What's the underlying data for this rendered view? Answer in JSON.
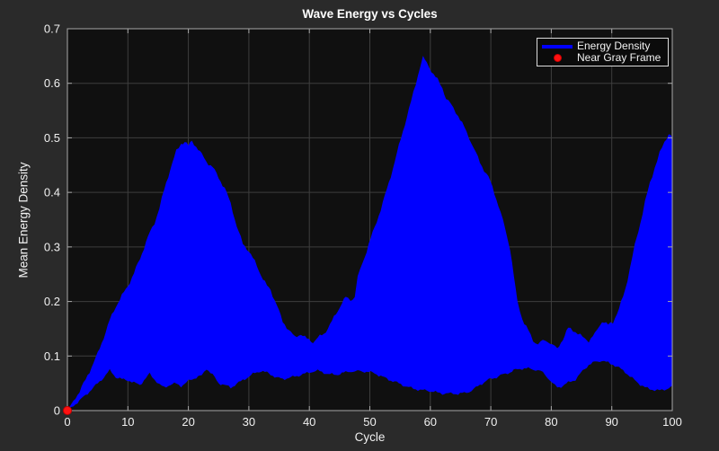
{
  "window": {
    "background": "#2a2a2a"
  },
  "chart_data": {
    "type": "area",
    "title": "Wave Energy vs Cycles",
    "xlabel": "Cycle",
    "ylabel": "Mean Energy Density",
    "xlim": [
      0,
      100
    ],
    "ylim": [
      0,
      0.7
    ],
    "grid": true,
    "legend_position": "top-right",
    "xticks": [
      0,
      10,
      20,
      30,
      40,
      50,
      60,
      70,
      80,
      90,
      100
    ],
    "xtick_labels": [
      "0",
      "10",
      "20",
      "30",
      "40",
      "50",
      "60",
      "70",
      "80",
      "90",
      "100"
    ],
    "yticks": [
      0,
      0.1,
      0.2,
      0.3,
      0.4,
      0.5,
      0.6,
      0.7
    ],
    "ytick_labels": [
      "0",
      "0.1",
      "0.2",
      "0.3",
      "0.4",
      "0.5",
      "0.6",
      "0.7"
    ],
    "colors": {
      "band": "#0000ff",
      "marker": "#ff1212",
      "marker_edge": "#cc0000",
      "grid": "#3e3e3e",
      "frame": "#a8a8a8",
      "plot_bg": "#101010",
      "figure_bg": "#2a2a2a",
      "text": "#f0f0f0"
    },
    "legend": {
      "entries": [
        {
          "label": "Energy Density",
          "swatch": "line",
          "color": "#0000ff"
        },
        {
          "label": "Near Gray Frame",
          "swatch": "dot",
          "color": "#ff1212"
        }
      ]
    },
    "series": [
      {
        "name": "Energy Density",
        "type": "band",
        "color": "#0000ff",
        "envelope": [
          [
            0,
            0,
            0
          ],
          [
            1,
            0.008,
            0.018
          ],
          [
            2,
            0.018,
            0.035
          ],
          [
            3,
            0.028,
            0.055
          ],
          [
            4,
            0.04,
            0.08
          ],
          [
            5,
            0.05,
            0.105
          ],
          [
            6,
            0.06,
            0.135
          ],
          [
            7,
            0.073,
            0.165
          ],
          [
            8,
            0.062,
            0.19
          ],
          [
            9,
            0.058,
            0.21
          ],
          [
            10,
            0.056,
            0.23
          ],
          [
            11,
            0.05,
            0.252
          ],
          [
            12,
            0.047,
            0.278
          ],
          [
            13,
            0.06,
            0.308
          ],
          [
            13.6,
            0.068,
            0.325
          ],
          [
            14.4,
            0.058,
            0.345
          ],
          [
            15.2,
            0.047,
            0.372
          ],
          [
            16,
            0.042,
            0.405
          ],
          [
            17,
            0.047,
            0.442
          ],
          [
            18,
            0.05,
            0.474
          ],
          [
            18.8,
            0.046,
            0.49
          ],
          [
            19.4,
            0.049,
            0.494
          ],
          [
            20,
            0.054,
            0.486
          ],
          [
            20.6,
            0.057,
            0.495
          ],
          [
            21.3,
            0.06,
            0.484
          ],
          [
            22.2,
            0.064,
            0.468
          ],
          [
            23,
            0.078,
            0.456
          ],
          [
            24,
            0.066,
            0.447
          ],
          [
            25,
            0.05,
            0.428
          ],
          [
            26,
            0.046,
            0.408
          ],
          [
            27,
            0.042,
            0.378
          ],
          [
            28,
            0.05,
            0.338
          ],
          [
            29,
            0.056,
            0.306
          ],
          [
            30,
            0.062,
            0.294
          ],
          [
            31,
            0.068,
            0.272
          ],
          [
            32,
            0.073,
            0.248
          ],
          [
            33,
            0.07,
            0.228
          ],
          [
            33.6,
            0.067,
            0.221
          ],
          [
            34.6,
            0.06,
            0.196
          ],
          [
            35.6,
            0.057,
            0.162
          ],
          [
            36.6,
            0.06,
            0.148
          ],
          [
            37.6,
            0.063,
            0.133
          ],
          [
            38.6,
            0.066,
            0.142
          ],
          [
            39.6,
            0.068,
            0.132
          ],
          [
            40.6,
            0.071,
            0.126
          ],
          [
            41.4,
            0.073,
            0.132
          ],
          [
            42.4,
            0.07,
            0.14
          ],
          [
            43.4,
            0.067,
            0.158
          ],
          [
            44.4,
            0.065,
            0.178
          ],
          [
            45.4,
            0.068,
            0.198
          ],
          [
            46,
            0.07,
            0.206
          ],
          [
            46.8,
            0.072,
            0.202
          ],
          [
            47.5,
            0.073,
            0.208
          ],
          [
            48,
            0.073,
            0.245
          ],
          [
            48.8,
            0.072,
            0.272
          ],
          [
            49.8,
            0.07,
            0.305
          ],
          [
            50.8,
            0.068,
            0.335
          ],
          [
            51.8,
            0.064,
            0.368
          ],
          [
            52.8,
            0.059,
            0.405
          ],
          [
            53.8,
            0.054,
            0.445
          ],
          [
            54.8,
            0.049,
            0.485
          ],
          [
            55.8,
            0.045,
            0.525
          ],
          [
            56.8,
            0.042,
            0.565
          ],
          [
            57.6,
            0.04,
            0.6
          ],
          [
            58.3,
            0.038,
            0.632
          ],
          [
            58.8,
            0.037,
            0.648
          ],
          [
            59.4,
            0.036,
            0.638
          ],
          [
            60.2,
            0.035,
            0.622
          ],
          [
            61.2,
            0.033,
            0.605
          ],
          [
            62,
            0.032,
            0.591
          ],
          [
            62.6,
            0.032,
            0.574
          ],
          [
            63.4,
            0.031,
            0.562
          ],
          [
            64.6,
            0.03,
            0.541
          ],
          [
            65.6,
            0.032,
            0.518
          ],
          [
            66.4,
            0.035,
            0.5
          ],
          [
            67.2,
            0.04,
            0.481
          ],
          [
            68.2,
            0.047,
            0.456
          ],
          [
            69.6,
            0.056,
            0.428
          ],
          [
            70.6,
            0.06,
            0.398
          ],
          [
            71.6,
            0.065,
            0.364
          ],
          [
            72.4,
            0.068,
            0.332
          ],
          [
            73.2,
            0.07,
            0.298
          ],
          [
            73.8,
            0.073,
            0.248
          ],
          [
            74.4,
            0.075,
            0.198
          ],
          [
            75.2,
            0.077,
            0.168
          ],
          [
            76.2,
            0.078,
            0.146
          ],
          [
            77,
            0.076,
            0.128
          ],
          [
            77.8,
            0.074,
            0.124
          ],
          [
            78.6,
            0.069,
            0.128
          ],
          [
            79.4,
            0.06,
            0.127
          ],
          [
            80.2,
            0.05,
            0.12
          ],
          [
            81,
            0.043,
            0.112
          ],
          [
            81.9,
            0.046,
            0.132
          ],
          [
            82.8,
            0.051,
            0.152
          ],
          [
            84,
            0.056,
            0.145
          ],
          [
            85.2,
            0.073,
            0.133
          ],
          [
            86.2,
            0.085,
            0.128
          ],
          [
            87.2,
            0.089,
            0.141
          ],
          [
            88.4,
            0.091,
            0.165
          ],
          [
            89.4,
            0.087,
            0.156
          ],
          [
            90.2,
            0.085,
            0.162
          ],
          [
            91.2,
            0.079,
            0.186
          ],
          [
            92.2,
            0.071,
            0.222
          ],
          [
            93,
            0.062,
            0.262
          ],
          [
            93.8,
            0.055,
            0.302
          ],
          [
            94.7,
            0.048,
            0.342
          ],
          [
            95.5,
            0.043,
            0.382
          ],
          [
            96.3,
            0.04,
            0.417
          ],
          [
            97.1,
            0.038,
            0.447
          ],
          [
            97.9,
            0.036,
            0.472
          ],
          [
            98.7,
            0.038,
            0.492
          ],
          [
            99.4,
            0.041,
            0.507
          ],
          [
            100,
            0.046,
            0.5
          ]
        ]
      },
      {
        "name": "Near Gray Frame",
        "type": "scatter",
        "color": "#ff1212",
        "points": [
          [
            0,
            0
          ]
        ]
      }
    ]
  }
}
